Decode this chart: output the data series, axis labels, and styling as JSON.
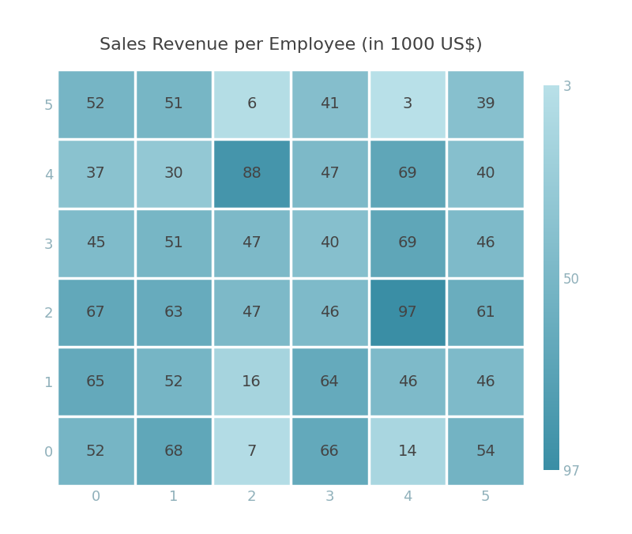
{
  "title": "Sales Revenue per Employee (in 1000 US$)",
  "title_fontsize": 16,
  "title_color": "#404040",
  "data_by_y": {
    "5": [
      52,
      51,
      6,
      41,
      3,
      39
    ],
    "4": [
      37,
      30,
      88,
      47,
      69,
      40
    ],
    "3": [
      45,
      51,
      47,
      40,
      69,
      46
    ],
    "2": [
      67,
      63,
      47,
      46,
      97,
      61
    ],
    "1": [
      65,
      52,
      16,
      64,
      46,
      46
    ],
    "0": [
      52,
      68,
      7,
      66,
      14,
      54
    ]
  },
  "x_labels": [
    "0",
    "1",
    "2",
    "3",
    "4",
    "5"
  ],
  "y_labels": [
    "5",
    "4",
    "3",
    "2",
    "1",
    "0"
  ],
  "ytick_labels": [
    "5",
    "4",
    "3",
    "2",
    "1",
    "0"
  ],
  "vmin": 3,
  "vmax": 97,
  "colorbar_ticks": [
    3,
    50,
    97
  ],
  "colorbar_labels": [
    "3",
    "50",
    "97"
  ],
  "cell_text_color": "#444444",
  "cell_text_fontsize": 14,
  "grid_color": "#ffffff",
  "grid_linewidth": 2.5,
  "cmap_light": "#b8e0e8",
  "cmap_dark": "#3a8ea5",
  "background_color": "#ffffff",
  "tick_color": "#8fb0ba",
  "tick_fontsize": 13,
  "colorbar_tick_fontsize": 12,
  "colorbar_tick_color": "#8fb0ba"
}
